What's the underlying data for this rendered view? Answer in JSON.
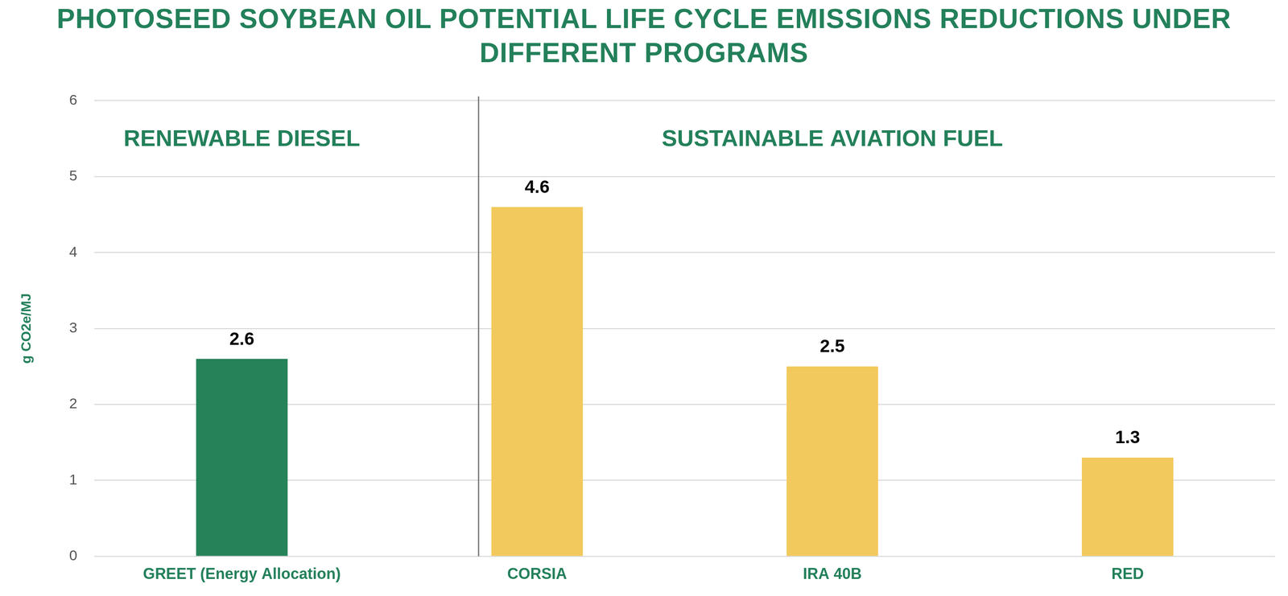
{
  "chart_data": {
    "type": "bar",
    "title": "PHOTOSEED SOYBEAN OIL POTENTIAL LIFE CYCLE EMISSIONS REDUCTIONS UNDER DIFFERENT PROGRAMS",
    "y_label": "g CO2e/MJ",
    "categories": [
      "GREET (Energy Allocation)",
      "CORSIA",
      "IRA 40B",
      "RED"
    ],
    "values": [
      2.6,
      4.6,
      2.5,
      1.3
    ],
    "colors": [
      "#268259",
      "#f2c95c",
      "#f2c95c",
      "#f2c95c"
    ],
    "annotations": [
      {
        "text": "RENEWABLE DIESEL",
        "from": "GREET (Energy Allocation)",
        "to": "GREET (Energy Allocation)"
      },
      {
        "text": "SUSTAINABLE AVIATION FUEL",
        "from": "CORSIA",
        "to": "RED"
      }
    ],
    "ylim": [
      0,
      6
    ],
    "yticks": [
      0,
      1,
      2,
      3,
      4,
      5,
      6
    ],
    "grid": true,
    "data_labels": true
  }
}
